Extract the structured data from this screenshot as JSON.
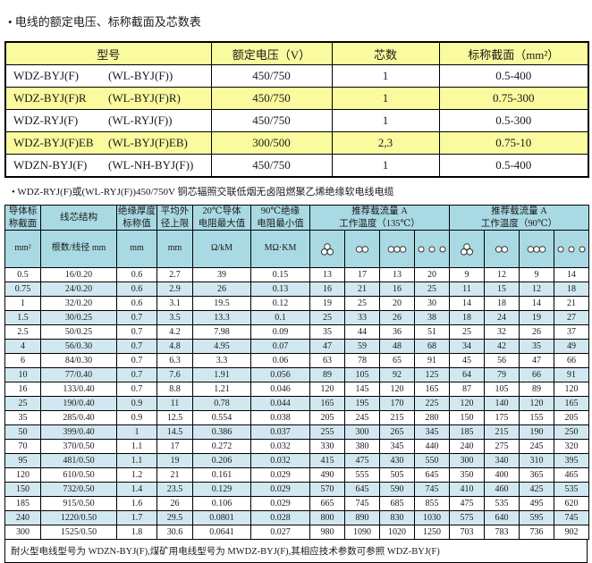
{
  "page": {
    "title": "• 电线的额定电压、标称截面及芯数表",
    "note1": "• WDZ-RYJ(F)或(WL-RYJ(F))450/750V 铜芯辐照交联低烟无卤阻燃聚乙烯绝缘软电线电缆",
    "footer_note": "耐火型电线型号为 WDZN-BYJ(F),煤矿用电线型号为 MWDZ-BYJ(F),其相应技术参数可参照 WDZ-BYJ(F)"
  },
  "colors": {
    "yellow": "#fafa9e",
    "header_blue": "#a9dae3",
    "row_blue": "#d2e8f1",
    "border": "#000000"
  },
  "table1": {
    "headers": [
      "型号",
      "额定电压（V）",
      "芯数",
      "标称截面（mm²）"
    ],
    "rows": [
      {
        "model": "WDZ-BYJ(F)",
        "alt": "(WL-BYJ(F))",
        "voltage": "450/750",
        "cores": "1",
        "section": "0.5-400"
      },
      {
        "model": "WDZ-BYJ(F)R",
        "alt": "(WL-BYJ(F)R)",
        "voltage": "450/750",
        "cores": "1",
        "section": "0.75-300"
      },
      {
        "model": "WDZ-RYJ(F)",
        "alt": "(WL-RYJ(F))",
        "voltage": "450/750",
        "cores": "1",
        "section": "0.5-300"
      },
      {
        "model": "WDZ-BYJ(F)EB",
        "alt": "(WL-BYJ(F)EB)",
        "voltage": "300/500",
        "cores": "2,3",
        "section": "0.75-10"
      },
      {
        "model": "WDZN-BYJ(F)",
        "alt": "(WL-NH-BYJ(F))",
        "voltage": "450/750",
        "cores": "1",
        "section": "0.5-400"
      }
    ]
  },
  "table2": {
    "col_headers": [
      "导体标\n称截面",
      "线芯结构",
      "绝缘厚度\n标称值",
      "平均外\n径上限",
      "20℃导体\n电阻最大值",
      "90℃绝缘\n电阻最小值"
    ],
    "group_headers": [
      "推荐载流量 A\n工作温度（135℃）",
      "推荐载流量 A\n工作温度（90℃）"
    ],
    "units": [
      "mm²",
      "根数/线径 mm",
      "mm",
      "mm",
      "Ω/kM",
      "MΩ·KM"
    ],
    "icon_names": [
      "trefoil-bundle-icon",
      "two-wires-touching-icon",
      "three-wires-touching-icon",
      "three-wires-spaced-icon"
    ],
    "rows": [
      [
        "0.5",
        "16/0.20",
        "0.6",
        "2.7",
        "39",
        "0.15",
        "13",
        "17",
        "13",
        "20",
        "9",
        "12",
        "9",
        "14"
      ],
      [
        "0.75",
        "24/0.20",
        "0.6",
        "2.9",
        "26",
        "0.13",
        "16",
        "21",
        "16",
        "25",
        "11",
        "15",
        "12",
        "18"
      ],
      [
        "1",
        "32/0.20",
        "0.6",
        "3.1",
        "19.5",
        "0.12",
        "19",
        "25",
        "20",
        "30",
        "14",
        "18",
        "14",
        "21"
      ],
      [
        "1.5",
        "30/0.25",
        "0.7",
        "3.5",
        "13.3",
        "0.1",
        "25",
        "33",
        "26",
        "38",
        "18",
        "24",
        "19",
        "27"
      ],
      [
        "2.5",
        "50/0.25",
        "0.7",
        "4.2",
        "7.98",
        "0.09",
        "35",
        "44",
        "36",
        "51",
        "25",
        "32",
        "26",
        "37"
      ],
      [
        "4",
        "56/0.30",
        "0.7",
        "4.8",
        "4.95",
        "0.07",
        "47",
        "59",
        "48",
        "68",
        "34",
        "42",
        "35",
        "49"
      ],
      [
        "6",
        "84/0.30",
        "0.7",
        "6.3",
        "3.3",
        "0.06",
        "63",
        "78",
        "65",
        "91",
        "45",
        "56",
        "47",
        "66"
      ],
      [
        "10",
        "77/0.40",
        "0.7",
        "7.6",
        "1.91",
        "0.056",
        "89",
        "105",
        "92",
        "125",
        "64",
        "79",
        "66",
        "91"
      ],
      [
        "16",
        "133/0.40",
        "0.7",
        "8.8",
        "1.21",
        "0.046",
        "120",
        "145",
        "120",
        "165",
        "87",
        "105",
        "89",
        "120"
      ],
      [
        "25",
        "190/0.40",
        "0.9",
        "11",
        "0.78",
        "0.044",
        "165",
        "195",
        "170",
        "225",
        "120",
        "140",
        "120",
        "165"
      ],
      [
        "35",
        "285/0.40",
        "0.9",
        "12.5",
        "0.554",
        "0.038",
        "205",
        "245",
        "215",
        "280",
        "150",
        "175",
        "155",
        "205"
      ],
      [
        "50",
        "399/0.40",
        "1",
        "14.5",
        "0.386",
        "0.037",
        "255",
        "300",
        "265",
        "345",
        "185",
        "215",
        "190",
        "250"
      ],
      [
        "70",
        "370/0.50",
        "1.1",
        "17",
        "0.272",
        "0.032",
        "330",
        "380",
        "345",
        "440",
        "240",
        "275",
        "245",
        "320"
      ],
      [
        "95",
        "481/0.50",
        "1.1",
        "19",
        "0.206",
        "0.032",
        "415",
        "475",
        "430",
        "550",
        "300",
        "340",
        "310",
        "395"
      ],
      [
        "120",
        "610/0.50",
        "1.2",
        "21",
        "0.161",
        "0.029",
        "490",
        "555",
        "505",
        "645",
        "350",
        "400",
        "365",
        "465"
      ],
      [
        "150",
        "732/0.50",
        "1.4",
        "23.5",
        "0.129",
        "0.029",
        "570",
        "645",
        "590",
        "745",
        "410",
        "460",
        "425",
        "535"
      ],
      [
        "185",
        "915/0.50",
        "1.6",
        "26",
        "0.106",
        "0.029",
        "665",
        "745",
        "685",
        "855",
        "475",
        "535",
        "495",
        "620"
      ],
      [
        "240",
        "1220/0.50",
        "1.7",
        "29.5",
        "0.0801",
        "0.028",
        "800",
        "890",
        "830",
        "1030",
        "575",
        "640",
        "595",
        "745"
      ],
      [
        "300",
        "1525/0.50",
        "1.8",
        "30.6",
        "0.0641",
        "0.027",
        "980",
        "1090",
        "1020",
        "1250",
        "703",
        "783",
        "736",
        "902"
      ]
    ]
  }
}
